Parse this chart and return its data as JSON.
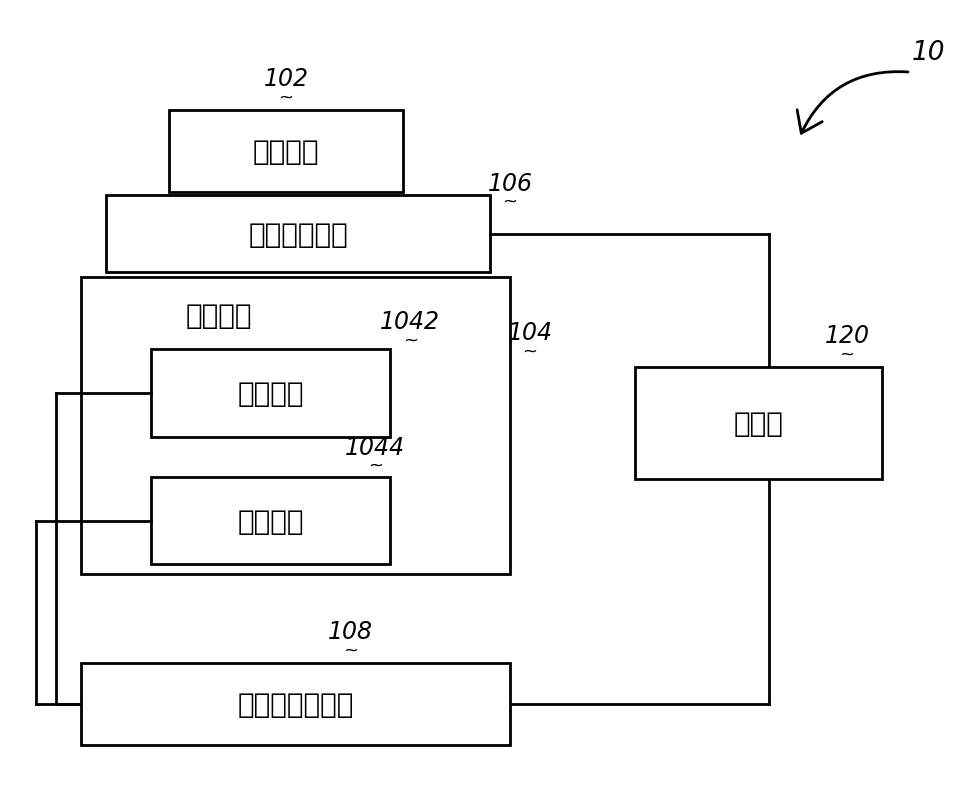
{
  "background_color": "#ffffff",
  "label_10": "10",
  "label_102": "102",
  "label_104": "104",
  "label_106": "106",
  "label_108": "108",
  "label_120": "120",
  "label_1042": "1042",
  "label_1044": "1044",
  "box_stator_text": "定子绕组",
  "box_stress_text": "应力检测装置",
  "box_rotor_text": "转子绕组",
  "box_work_text": "工作绕组",
  "box_control_winding_text": "控制绕组",
  "box_converter_text": "电力电子变换器",
  "box_controller_text": "控制器",
  "line_color": "#000000",
  "lw": 2.0,
  "font_size_box": 20,
  "font_size_label": 17
}
